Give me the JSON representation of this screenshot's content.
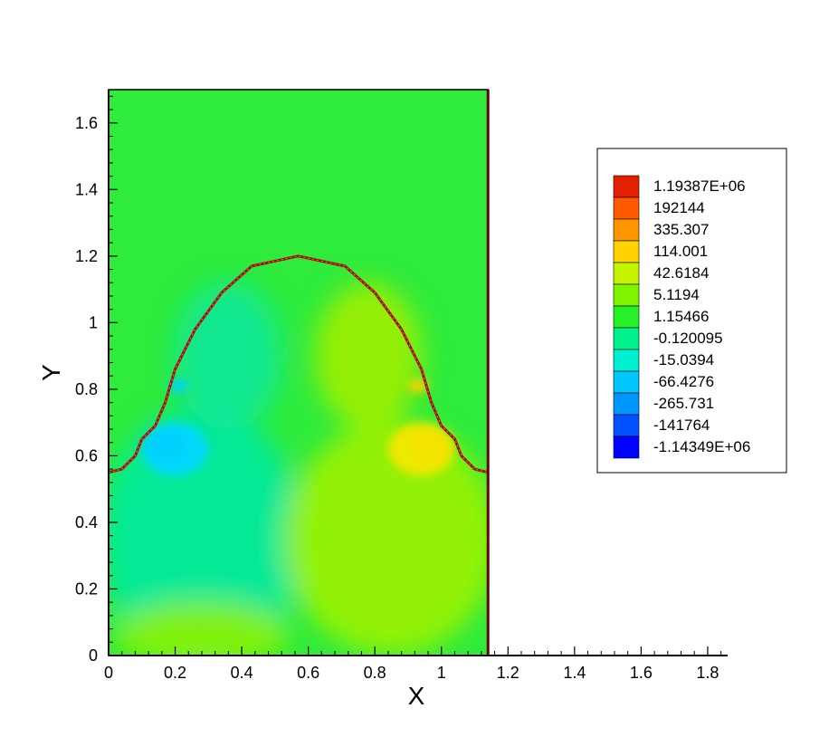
{
  "chart_data": {
    "type": "heatmap",
    "title": "",
    "xlabel": "X",
    "ylabel": "Y",
    "xlim": [
      0,
      1.86
    ],
    "ylim": [
      0,
      1.7
    ],
    "domain": {
      "x": [
        0,
        1.14
      ],
      "y": [
        0,
        1.7
      ]
    },
    "x_ticks": [
      "0",
      "0.2",
      "0.4",
      "0.6",
      "0.8",
      "1",
      "1.2",
      "1.4",
      "1.6",
      "1.8"
    ],
    "x_tick_values": [
      0,
      0.2,
      0.4,
      0.6,
      0.8,
      1,
      1.2,
      1.4,
      1.6,
      1.8
    ],
    "y_ticks": [
      "0",
      "0.2",
      "0.4",
      "0.6",
      "0.8",
      "1",
      "1.2",
      "1.4",
      "1.6"
    ],
    "y_tick_values": [
      0,
      0.2,
      0.4,
      0.6,
      0.8,
      1,
      1.2,
      1.4,
      1.6
    ],
    "legend_position": "right",
    "legend": {
      "levels": [
        "1.19387E+06",
        "192144",
        "335.307",
        "114.001",
        "42.6184",
        "5.1194",
        "1.15466",
        "-0.120095",
        "-15.0394",
        "-66.4276",
        "-265.731",
        "-141764",
        "-1.14349E+06"
      ],
      "colors": [
        "#e52000",
        "#ff5a00",
        "#ff9600",
        "#ffd200",
        "#c6f500",
        "#7ff500",
        "#28f028",
        "#00f08c",
        "#00f0d2",
        "#00c8ff",
        "#0096ff",
        "#0050ff",
        "#0000ff"
      ]
    },
    "background_color": "#2eeb3c",
    "interface": {
      "description_points": [
        [
          0.0,
          0.55
        ],
        [
          0.04,
          0.56
        ],
        [
          0.08,
          0.6
        ],
        [
          0.1,
          0.65
        ],
        [
          0.14,
          0.69
        ],
        [
          0.17,
          0.76
        ],
        [
          0.2,
          0.86
        ],
        [
          0.26,
          0.98
        ],
        [
          0.34,
          1.09
        ],
        [
          0.43,
          1.17
        ],
        [
          0.57,
          1.2
        ],
        [
          0.71,
          1.17
        ],
        [
          0.8,
          1.09
        ],
        [
          0.88,
          0.98
        ],
        [
          0.94,
          0.86
        ],
        [
          0.97,
          0.76
        ],
        [
          1.0,
          0.69
        ],
        [
          1.04,
          0.65
        ],
        [
          1.06,
          0.6
        ],
        [
          1.1,
          0.56
        ],
        [
          1.14,
          0.55
        ]
      ],
      "color": "#a01010"
    },
    "regions": [
      {
        "name": "lower-left-cool",
        "cx": 0.28,
        "cy": 0.35,
        "rx": 0.3,
        "ry": 0.4,
        "color": "#00e9a0"
      },
      {
        "name": "lower-right-warm",
        "cx": 0.85,
        "cy": 0.35,
        "rx": 0.32,
        "ry": 0.35,
        "color": "#9df200"
      },
      {
        "name": "bottom-warm",
        "cx": 0.28,
        "cy": 0.06,
        "rx": 0.26,
        "ry": 0.1,
        "color": "#8ef200"
      },
      {
        "name": "dome-left-cool",
        "cx": 0.36,
        "cy": 0.9,
        "rx": 0.16,
        "ry": 0.22,
        "color": "#10e89a"
      },
      {
        "name": "dome-right-warm",
        "cx": 0.78,
        "cy": 0.9,
        "rx": 0.16,
        "ry": 0.22,
        "color": "#a2f000"
      },
      {
        "name": "left-vortex-blue",
        "cx": 0.17,
        "cy": 0.63,
        "rx": 0.07,
        "ry": 0.05,
        "color": "#1060ff"
      },
      {
        "name": "left-vortex-cyan",
        "cx": 0.2,
        "cy": 0.62,
        "rx": 0.1,
        "ry": 0.08,
        "color": "#00d8ff"
      },
      {
        "name": "right-vortex-orange",
        "cx": 0.97,
        "cy": 0.63,
        "rx": 0.07,
        "ry": 0.05,
        "color": "#ff8c00"
      },
      {
        "name": "right-vortex-yellow",
        "cx": 0.94,
        "cy": 0.62,
        "rx": 0.1,
        "ry": 0.08,
        "color": "#f2e800"
      },
      {
        "name": "left-upper-spot",
        "cx": 0.21,
        "cy": 0.81,
        "rx": 0.03,
        "ry": 0.02,
        "color": "#00d0ff"
      },
      {
        "name": "right-upper-spot",
        "cx": 0.93,
        "cy": 0.81,
        "rx": 0.03,
        "ry": 0.02,
        "color": "#ffd000"
      }
    ]
  }
}
